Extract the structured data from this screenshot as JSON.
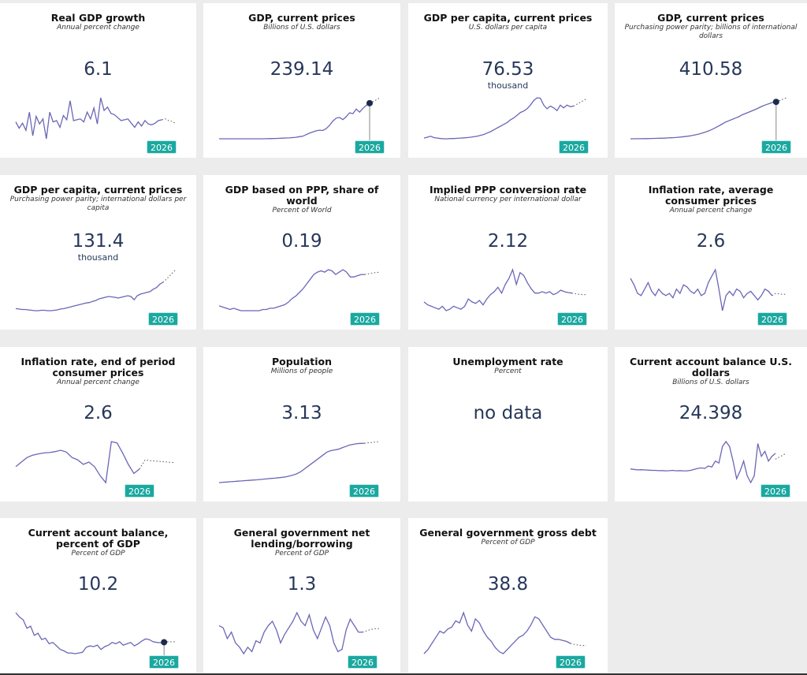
{
  "badge_color": "#1ba8a0",
  "line_color": "#6a66b7",
  "cards": [
    {
      "title": "Real GDP growth",
      "subtitle": "Annual percent change",
      "value": "6.1",
      "unit": "",
      "year_label": "2026",
      "highlight_dot": false,
      "chart_data": {
        "type": "line",
        "series": [
          {
            "values": [
              2.5,
              1.0,
              2.2,
              0.5,
              4.8,
              -0.8,
              3.8,
              2.0,
              3.2,
              -1.5,
              4.8,
              2.5,
              2.8,
              1.2,
              4.0,
              3.0,
              7.5,
              2.8,
              3.0,
              3.2,
              2.5,
              4.8,
              3.2,
              5.8,
              2.0,
              8.2,
              5.2,
              6.0,
              4.5,
              4.2,
              3.5,
              2.8,
              3.0,
              3.2,
              2.2,
              1.2,
              2.5,
              1.5,
              2.8,
              2.0,
              1.8,
              2.2,
              2.8,
              3.0
            ]
          },
          {
            "values": [
              3.0,
              3.2,
              2.8,
              2.6,
              2.2
            ],
            "projection": true
          }
        ]
      }
    },
    {
      "title": "GDP, current prices",
      "subtitle": "Billions of U.S. dollars",
      "value": "239.14",
      "unit": "",
      "year_label": "2026",
      "highlight_dot": true,
      "chart_data": {
        "type": "line",
        "series": [
          {
            "values": [
              3,
              3,
              3,
              3,
              3,
              3,
              3,
              3,
              3,
              3,
              3,
              3,
              3,
              3,
              3.5,
              4,
              4.5,
              5,
              6,
              7,
              8,
              9,
              11,
              13,
              17,
              20,
              30,
              40,
              48,
              56,
              60,
              58,
              70,
              92,
              120,
              140,
              145,
              130,
              150,
              175,
              170,
              200,
              180,
              205,
              225,
              239.14
            ]
          },
          {
            "values": [
              239.14,
              250,
              262,
              275
            ],
            "projection": true
          }
        ]
      }
    },
    {
      "title": "GDP per capita, current prices",
      "subtitle": "U.S. dollars per capita",
      "value": "76.53",
      "unit": "thousand",
      "year_label": "2026",
      "highlight_dot": false,
      "chart_data": {
        "type": "line",
        "series": [
          {
            "values": [
              8,
              10,
              12,
              9,
              8,
              7,
              6.5,
              6.5,
              7,
              7,
              7.5,
              8,
              8.5,
              9,
              10,
              11,
              12,
              14,
              16,
              19,
              22,
              26,
              30,
              34,
              38,
              42,
              48,
              52,
              58,
              64,
              67,
              72,
              80,
              90,
              96,
              95,
              80,
              72,
              78,
              74,
              68,
              80,
              74,
              80,
              76.53,
              78
            ]
          },
          {
            "values": [
              78,
              82,
              86,
              90,
              95
            ],
            "projection": true
          }
        ]
      }
    },
    {
      "title": "GDP, current prices",
      "subtitle": "Purchasing power parity; billions of international dollars",
      "value": "410.58",
      "unit": "",
      "year_label": "2026",
      "highlight_dot": true,
      "chart_data": {
        "type": "line",
        "series": [
          {
            "values": [
              10,
              10,
              11,
              11,
              12,
              12,
              13,
              14,
              15,
              16,
              17,
              19,
              21,
              23,
              26,
              30,
              34,
              38,
              44,
              52,
              60,
              70,
              82,
              95,
              110,
              128,
              148,
              168,
              190,
              205,
              220,
              235,
              250,
              270,
              285,
              300,
              315,
              330,
              348,
              365,
              380,
              392,
              405,
              410.58
            ]
          },
          {
            "values": [
              410.58,
              425,
              440,
              455
            ],
            "projection": true
          }
        ]
      }
    },
    {
      "title": "GDP per capita, current prices",
      "subtitle": "Purchasing power parity; international dollars per capita",
      "value": "131.4",
      "unit": "thousand",
      "year_label": "2026",
      "highlight_dot": false,
      "chart_data": {
        "type": "line",
        "series": [
          {
            "values": [
              20,
              19,
              18,
              18,
              17,
              16,
              15,
              15,
              16,
              16,
              15,
              15,
              16,
              17,
              19,
              20,
              22,
              24,
              26,
              28,
              30,
              32,
              34,
              35,
              38,
              40,
              44,
              46,
              48,
              50,
              49,
              48,
              46,
              48,
              50,
              52,
              50,
              42,
              52,
              56,
              58,
              60,
              62,
              68,
              72,
              80,
              85
            ]
          },
          {
            "values": [
              85,
              92,
              100,
              108,
              116
            ],
            "projection": true
          }
        ]
      }
    },
    {
      "title": "GDP based on PPP, share of world",
      "subtitle": "Percent of World",
      "value": "0.19",
      "unit": "",
      "year_label": "2026",
      "highlight_dot": false,
      "chart_data": {
        "type": "line",
        "series": [
          {
            "values": [
              0.06,
              0.055,
              0.05,
              0.045,
              0.05,
              0.045,
              0.04,
              0.04,
              0.04,
              0.04,
              0.04,
              0.04,
              0.045,
              0.045,
              0.05,
              0.05,
              0.055,
              0.06,
              0.065,
              0.075,
              0.09,
              0.1,
              0.115,
              0.13,
              0.15,
              0.17,
              0.19,
              0.2,
              0.205,
              0.2,
              0.21,
              0.205,
              0.19,
              0.2,
              0.21,
              0.2,
              0.18,
              0.18,
              0.185,
              0.19,
              0.19
            ]
          },
          {
            "values": [
              0.19,
              0.193,
              0.196,
              0.198,
              0.2
            ],
            "projection": true
          }
        ]
      }
    },
    {
      "title": "Implied PPP conversion rate",
      "subtitle": "National currency per international dollar",
      "value": "2.12",
      "unit": "",
      "year_label": "2026",
      "highlight_dot": false,
      "chart_data": {
        "type": "line",
        "series": [
          {
            "values": [
              1.5,
              1.4,
              1.35,
              1.3,
              1.25,
              1.35,
              1.2,
              1.25,
              1.35,
              1.3,
              1.25,
              1.35,
              1.6,
              1.5,
              1.45,
              1.55,
              1.4,
              1.6,
              1.75,
              1.85,
              2.0,
              1.8,
              2.1,
              2.3,
              2.6,
              2.1,
              2.5,
              2.4,
              2.15,
              1.95,
              1.8,
              1.8,
              1.85,
              1.8,
              1.85,
              1.75,
              1.8,
              1.9,
              1.85,
              1.82,
              1.8
            ]
          },
          {
            "values": [
              1.8,
              1.78,
              1.76,
              1.75,
              1.75
            ],
            "projection": true
          }
        ]
      }
    },
    {
      "title": "Inflation rate, average consumer prices",
      "subtitle": "Annual percent change",
      "value": "2.6",
      "unit": "",
      "year_label": "2026",
      "highlight_dot": false,
      "chart_data": {
        "type": "line",
        "series": [
          {
            "values": [
              6.5,
              5.0,
              3.0,
              2.5,
              4.0,
              5.5,
              3.5,
              2.5,
              4.0,
              3.0,
              2.5,
              3.0,
              2.0,
              4.0,
              3.0,
              5.0,
              4.5,
              3.5,
              3.0,
              4.0,
              2.5,
              3.0,
              5.5,
              7.0,
              8.5,
              4.0,
              -1.0,
              2.5,
              3.5,
              2.5,
              4.0,
              3.5,
              2.0,
              3.0,
              3.5,
              2.5,
              1.5,
              2.5,
              4.0,
              3.5,
              2.5
            ]
          },
          {
            "values": [
              2.5,
              3.0,
              2.9,
              2.8,
              2.8
            ],
            "projection": true
          }
        ]
      }
    },
    {
      "title": "Inflation rate, end of period consumer prices",
      "subtitle": "Annual percent change",
      "value": "2.6",
      "unit": "",
      "year_label": "2026",
      "highlight_dot": false,
      "chart_data": {
        "type": "line",
        "series": [
          {
            "values": [
              2.0,
              3.0,
              4.0,
              4.5,
              4.8,
              5.0,
              5.1,
              5.3,
              5.6,
              5.2,
              4.0,
              3.5,
              2.5,
              3.0,
              2.0,
              0.0,
              -1.5,
              7.5,
              7.2,
              5.0,
              2.5,
              0.5,
              1.5
            ]
          },
          {
            "values": [
              1.5,
              3.5,
              3.3,
              3.2,
              3.1,
              3.0,
              2.9
            ],
            "projection": true
          }
        ]
      }
    },
    {
      "title": "Population",
      "subtitle": "Millions of people",
      "value": "3.13",
      "unit": "",
      "year_label": "2026",
      "highlight_dot": false,
      "chart_data": {
        "type": "line",
        "series": [
          {
            "values": [
              0.3,
              0.32,
              0.34,
              0.36,
              0.38,
              0.4,
              0.42,
              0.44,
              0.46,
              0.48,
              0.5,
              0.52,
              0.55,
              0.58,
              0.6,
              0.62,
              0.65,
              0.68,
              0.72,
              0.78,
              0.85,
              0.95,
              1.1,
              1.3,
              1.5,
              1.7,
              1.9,
              2.1,
              2.3,
              2.5,
              2.6,
              2.65,
              2.7,
              2.8,
              2.9,
              3.0,
              3.05,
              3.1,
              3.12,
              3.13
            ]
          },
          {
            "values": [
              3.13,
              3.16,
              3.19,
              3.22,
              3.25
            ],
            "projection": true
          }
        ]
      }
    },
    {
      "title": "Unemployment rate",
      "subtitle": "Percent",
      "value": "no data",
      "unit": "",
      "year_label": "",
      "highlight_dot": false,
      "chart_data": null
    },
    {
      "title": "Current account balance U.S. dollars",
      "subtitle": "Billions of U.S. dollars",
      "value": "24.398",
      "unit": "",
      "year_label": "2026",
      "highlight_dot": false,
      "chart_data": {
        "type": "line",
        "series": [
          {
            "values": [
              2.0,
              1.5,
              1.0,
              1.2,
              1.0,
              0.8,
              0.5,
              0.5,
              0.2,
              0.3,
              0.0,
              0.2,
              0.5,
              0.0,
              0.3,
              0.0,
              0.0,
              0.5,
              1.5,
              2.5,
              3.0,
              2.5,
              5.0,
              4.0,
              10.0,
              8.0,
              25.0,
              30.0,
              25.0,
              10.0,
              -8.0,
              0.0,
              10.0,
              -5.0,
              -12.0,
              -5.0,
              28.0,
              15.0,
              20.0,
              10.0,
              15.0,
              18.0
            ]
          },
          {
            "values": [
              12.0,
              14.0,
              16.0,
              18.0
            ],
            "projection": true
          }
        ]
      }
    },
    {
      "title": "Current account balance, percent of GDP",
      "subtitle": "Percent of GDP",
      "value": "10.2",
      "unit": "",
      "year_label": "2026",
      "highlight_dot": true,
      "chart_data": {
        "type": "line",
        "series": [
          {
            "values": [
              52,
              46,
              42,
              30,
              33,
              20,
              23,
              14,
              16,
              8,
              10,
              5,
              0,
              -2,
              -5,
              -5,
              -6,
              -5,
              -4,
              3,
              5,
              4,
              6,
              0,
              4,
              6,
              10,
              8,
              11,
              6,
              8,
              10,
              5,
              8,
              12,
              15,
              14,
              11,
              10,
              9.6,
              10.2
            ]
          },
          {
            "values": [
              10.2,
              11,
              10.8,
              10.9
            ],
            "projection": true
          }
        ]
      }
    },
    {
      "title": "General government net lending/borrowing",
      "subtitle": "Percent of GDP",
      "value": "1.3",
      "unit": "",
      "year_label": "2026",
      "highlight_dot": false,
      "chart_data": {
        "type": "line",
        "series": [
          {
            "values": [
              2.0,
              1.5,
              -1.0,
              0.5,
              -2.0,
              -3.0,
              -4.5,
              -3.0,
              -4.0,
              -1.5,
              -2.0,
              0.5,
              2.0,
              3.0,
              1.0,
              -2.0,
              0.0,
              1.5,
              3.0,
              5.0,
              3.0,
              2.0,
              4.5,
              1.0,
              -1.0,
              1.5,
              4.0,
              2.0,
              -2.0,
              -4.0,
              -3.5,
              1.0,
              3.5,
              2.0,
              0.5,
              0.5
            ]
          },
          {
            "values": [
              0.5,
              0.8,
              1.1,
              1.3,
              1.3
            ],
            "projection": true
          }
        ]
      }
    },
    {
      "title": "General government gross debt",
      "subtitle": "Percent of GDP",
      "value": "38.8",
      "unit": "",
      "year_label": "2026",
      "highlight_dot": false,
      "chart_data": {
        "type": "line",
        "series": [
          {
            "values": [
              30,
              34,
              40,
              46,
              52,
              50,
              54,
              56,
              62,
              60,
              70,
              58,
              52,
              64,
              60,
              52,
              46,
              42,
              36,
              32,
              30,
              34,
              38,
              42,
              46,
              48,
              52,
              58,
              66,
              64,
              58,
              52,
              46,
              44,
              44,
              43,
              42,
              40
            ]
          },
          {
            "values": [
              40,
              39,
              38.5,
              38,
              38
            ],
            "projection": true
          }
        ]
      }
    }
  ]
}
